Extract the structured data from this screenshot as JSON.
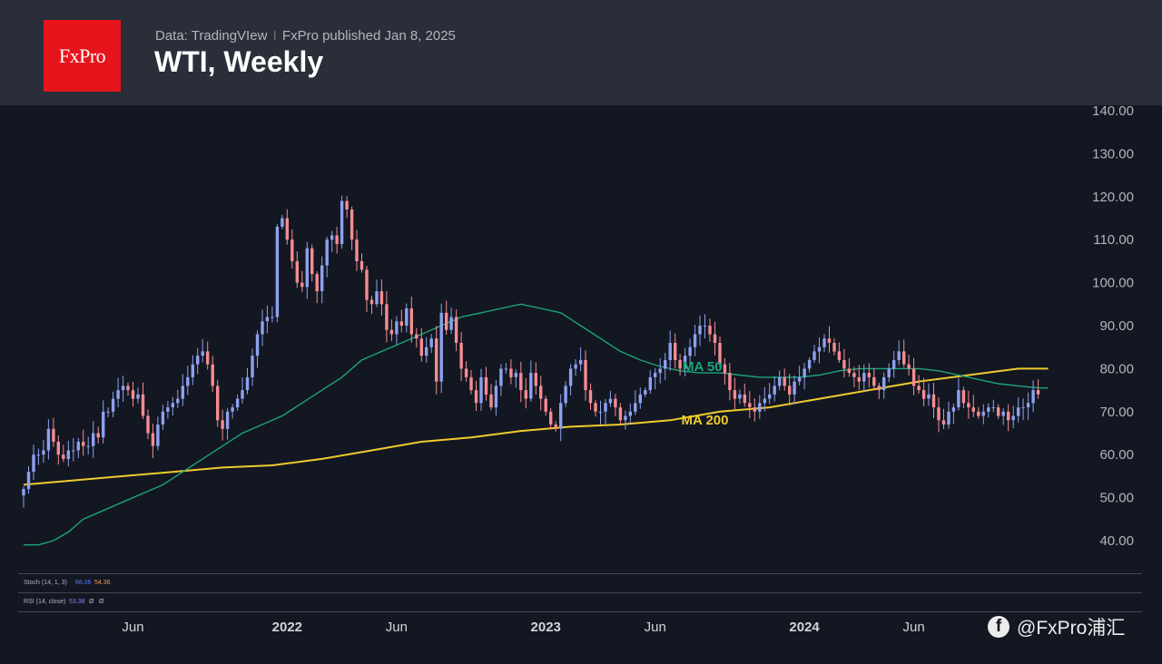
{
  "header": {
    "source": "Data: TradingVIew",
    "separator": "I",
    "publisher": "FxPro published Jan 8, 2025",
    "title": "WTI, Weekly",
    "logo_text": "FxPro"
  },
  "indicators": {
    "stoch_label": "Stoch (14, 1, 3)",
    "stoch_v1": "68.06",
    "stoch_v2": "54.36",
    "rsi_label": "RSI (14, close)",
    "rsi_v1": "53.38",
    "rsi_v2": "Ø",
    "rsi_v3": "Ø"
  },
  "watermark": {
    "icon": "facebook-icon",
    "text": "@FxPro浦汇"
  },
  "colors": {
    "up": "#8ea1f0",
    "down": "#f58c91",
    "ma50": "#1ba57a",
    "ma200": "#efcb2c",
    "background": "#131722",
    "header": "#2a2e39",
    "brand": "#e8141b"
  },
  "chart_data": {
    "type": "candlestick",
    "title": "WTI, Weekly",
    "ylim": [
      40,
      140
    ],
    "y_ticks": [
      "140.00",
      "130.00",
      "120.00",
      "110.00",
      "100.00",
      "90.00",
      "80.00",
      "70.00",
      "60.00",
      "50.00",
      "40.00"
    ],
    "x_ticks": [
      "Jun",
      "2022",
      "Jun",
      "2023",
      "Jun",
      "2024",
      "Jun"
    ],
    "x_ticks_bold": [
      false,
      true,
      false,
      true,
      false,
      true,
      false
    ],
    "x_tick_weeks": [
      22,
      53,
      75,
      105,
      127,
      157,
      179
    ],
    "x_range_weeks": [
      0,
      207
    ],
    "annotations": [
      {
        "text": "MA 50",
        "week": 136.5,
        "value": 79.5,
        "color": "#1ba57a"
      },
      {
        "text": "MA 200",
        "week": 137,
        "value": 67,
        "color": "#efcb2c"
      }
    ],
    "series": [
      {
        "name": "WTI",
        "kind": "weekly_close",
        "values": [
          52,
          56,
          60,
          60,
          61,
          66,
          63,
          60,
          59,
          61,
          61,
          63,
          62,
          62,
          65,
          64,
          70,
          70,
          73,
          75,
          76,
          75,
          73,
          74,
          69,
          65,
          62,
          67,
          70,
          71,
          72,
          73,
          76,
          78,
          81,
          83,
          84,
          81,
          76,
          68,
          66,
          70,
          71,
          73,
          75,
          78,
          83,
          88,
          91,
          92,
          92,
          113,
          115,
          110,
          105,
          100,
          99,
          108,
          102,
          98,
          104,
          110,
          111,
          109,
          119,
          117,
          110,
          105,
          103,
          96,
          95,
          98,
          95,
          89,
          88,
          91,
          90,
          94,
          88,
          87,
          83,
          85,
          87,
          77,
          93,
          89,
          92,
          86,
          80,
          78,
          75,
          72,
          78,
          74,
          71,
          76,
          80,
          80,
          78,
          79,
          75,
          73,
          79,
          76,
          73,
          70,
          67,
          66,
          72,
          76,
          80,
          81,
          82,
          75,
          72,
          70,
          70,
          72,
          73,
          71,
          68,
          69,
          70,
          72,
          74,
          75,
          78,
          79,
          80,
          82,
          86,
          82,
          80,
          83,
          85,
          88,
          90,
          90,
          88,
          86,
          81,
          79,
          75,
          73,
          74,
          72,
          71,
          70,
          72,
          73,
          74,
          76,
          78,
          76,
          74,
          77,
          78,
          80,
          82,
          84,
          85,
          87,
          86,
          84,
          82,
          80,
          79,
          78,
          77,
          79,
          78,
          76,
          75,
          78,
          80,
          82,
          84,
          81,
          80,
          76,
          75,
          73,
          74,
          71,
          68,
          67,
          70,
          71,
          75,
          72,
          71,
          70,
          69,
          70,
          71,
          71,
          69,
          70,
          68,
          69,
          71,
          71,
          72,
          75,
          74
        ]
      },
      {
        "name": "MA 50",
        "kind": "line",
        "values": [
          [
            0,
            39
          ],
          [
            3,
            39
          ],
          [
            6,
            40
          ],
          [
            9,
            42
          ],
          [
            12,
            45
          ],
          [
            16,
            47
          ],
          [
            20,
            49
          ],
          [
            24,
            51
          ],
          [
            28,
            53
          ],
          [
            32,
            56
          ],
          [
            36,
            59
          ],
          [
            40,
            62
          ],
          [
            44,
            65
          ],
          [
            48,
            67
          ],
          [
            52,
            69
          ],
          [
            56,
            72
          ],
          [
            60,
            75
          ],
          [
            64,
            78
          ],
          [
            68,
            82
          ],
          [
            72,
            84
          ],
          [
            76,
            86
          ],
          [
            80,
            88
          ],
          [
            84,
            90
          ],
          [
            88,
            92
          ],
          [
            92,
            93
          ],
          [
            96,
            94
          ],
          [
            100,
            95
          ],
          [
            104,
            94
          ],
          [
            108,
            93
          ],
          [
            112,
            90
          ],
          [
            116,
            87
          ],
          [
            120,
            84
          ],
          [
            124,
            82
          ],
          [
            128,
            80.5
          ],
          [
            132,
            79.5
          ],
          [
            136,
            79
          ],
          [
            140,
            79
          ],
          [
            144,
            78.5
          ],
          [
            148,
            78
          ],
          [
            152,
            78
          ],
          [
            156,
            78
          ],
          [
            160,
            78.5
          ],
          [
            164,
            79.5
          ],
          [
            168,
            80
          ],
          [
            172,
            80
          ],
          [
            176,
            80
          ],
          [
            180,
            80
          ],
          [
            184,
            79.5
          ],
          [
            188,
            78.5
          ],
          [
            192,
            77.5
          ],
          [
            196,
            76.5
          ],
          [
            200,
            76
          ],
          [
            204,
            75.5
          ],
          [
            206,
            75.5
          ]
        ]
      },
      {
        "name": "MA 200",
        "kind": "line",
        "values": [
          [
            0,
            53
          ],
          [
            10,
            54
          ],
          [
            20,
            55
          ],
          [
            30,
            56
          ],
          [
            40,
            57
          ],
          [
            50,
            57.5
          ],
          [
            60,
            59
          ],
          [
            70,
            61
          ],
          [
            80,
            63
          ],
          [
            90,
            64
          ],
          [
            100,
            65.5
          ],
          [
            110,
            66.5
          ],
          [
            120,
            67
          ],
          [
            130,
            68
          ],
          [
            140,
            70
          ],
          [
            150,
            71
          ],
          [
            160,
            73
          ],
          [
            170,
            75
          ],
          [
            180,
            77
          ],
          [
            190,
            78.5
          ],
          [
            200,
            80
          ],
          [
            206,
            80
          ]
        ]
      }
    ]
  }
}
